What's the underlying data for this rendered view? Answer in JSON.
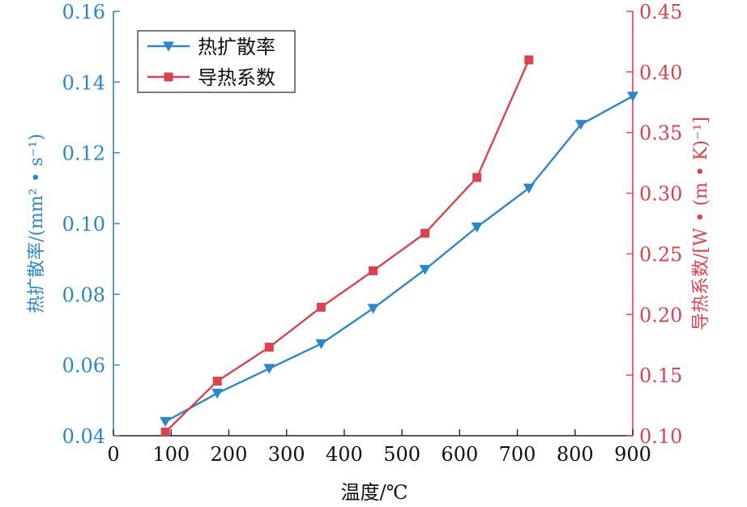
{
  "colors": {
    "left": "#2B87C8",
    "right": "#D9424F",
    "axis": "#222222",
    "text": "#111111"
  },
  "chart_data": {
    "type": "line",
    "title": "",
    "xlabel": "温度/℃",
    "ylabel_left": "热扩散率/(mm² • s⁻¹)",
    "ylabel_right": "导热系数/[W • (m • K)⁻¹]",
    "xlim": [
      0,
      900
    ],
    "ylim_left": [
      0.04,
      0.16
    ],
    "ylim_right": [
      0.1,
      0.45
    ],
    "x_ticks": [
      "0",
      "100",
      "200",
      "300",
      "400",
      "500",
      "600",
      "700",
      "800",
      "900"
    ],
    "y_left_ticks": [
      "0.04",
      "0.06",
      "0.08",
      "0.10",
      "0.12",
      "0.14",
      "0.16"
    ],
    "y_right_ticks": [
      "0.10",
      "0.15",
      "0.20",
      "0.25",
      "0.30",
      "0.35",
      "0.40",
      "0.45"
    ],
    "grid": false,
    "legend": {
      "position": "top-left"
    },
    "series": [
      {
        "name": "热扩散率",
        "axis": "left",
        "marker": "triangle-down",
        "color": "#2B87C8",
        "x": [
          90,
          180,
          270,
          360,
          450,
          540,
          630,
          720,
          810,
          900
        ],
        "y": [
          0.044,
          0.052,
          0.059,
          0.066,
          0.076,
          0.087,
          0.099,
          0.11,
          0.128,
          0.136
        ]
      },
      {
        "name": "导热系数",
        "axis": "right",
        "marker": "square",
        "color": "#D9424F",
        "x": [
          90,
          180,
          270,
          360,
          450,
          540,
          630,
          720
        ],
        "y": [
          0.103,
          0.145,
          0.173,
          0.206,
          0.236,
          0.267,
          0.313,
          0.41
        ]
      }
    ]
  }
}
